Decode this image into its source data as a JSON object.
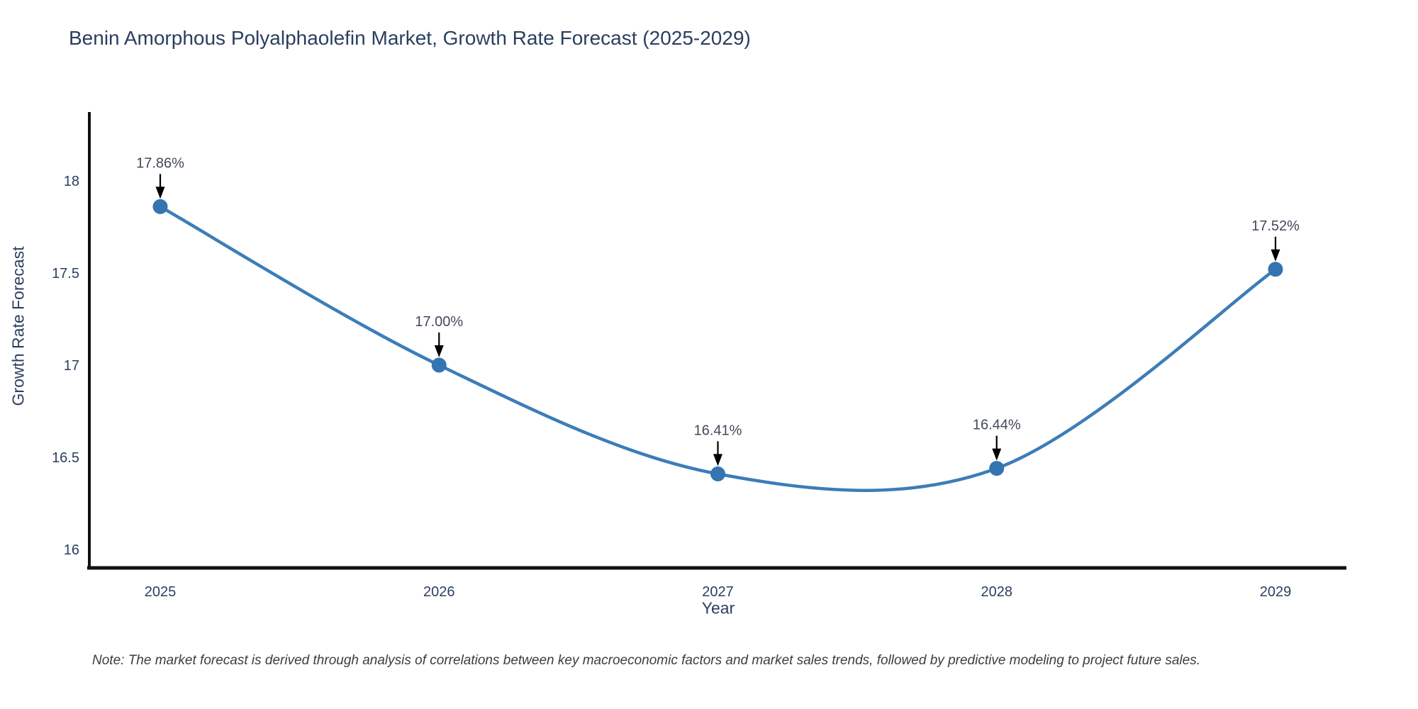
{
  "chart_data": {
    "type": "line",
    "title": "Benin Amorphous Polyalphaolefin Market, Growth Rate Forecast (2025-2029)",
    "xlabel": "Year",
    "ylabel": "Growth Rate Forecast",
    "x": [
      2025,
      2026,
      2027,
      2028,
      2029
    ],
    "values": [
      17.86,
      17.0,
      16.41,
      16.44,
      17.52
    ],
    "point_labels": [
      "17.86%",
      "17.00%",
      "16.41%",
      "16.44%",
      "17.52%"
    ],
    "x_tick_labels": [
      "2025",
      "2026",
      "2027",
      "2028",
      "2029"
    ],
    "y_ticks": [
      16,
      16.5,
      17,
      17.5,
      18
    ],
    "y_tick_labels": [
      "16",
      "16.5",
      "17",
      "17.5",
      "18"
    ],
    "ylim": [
      15.9,
      18.55
    ],
    "line_shape": "spline",
    "grid": false,
    "legend": "none",
    "colors": {
      "line": "#3c7db8",
      "marker": "#3474b0",
      "axis": "#111111",
      "tick_text": "#2a3f5f",
      "annotation_text": "#42495a",
      "annotation_arrow": "#000000"
    },
    "note": "Note: The market forecast is derived through analysis of correlations between key macroeconomic factors and market sales trends, followed by predictive modeling to project future sales."
  }
}
